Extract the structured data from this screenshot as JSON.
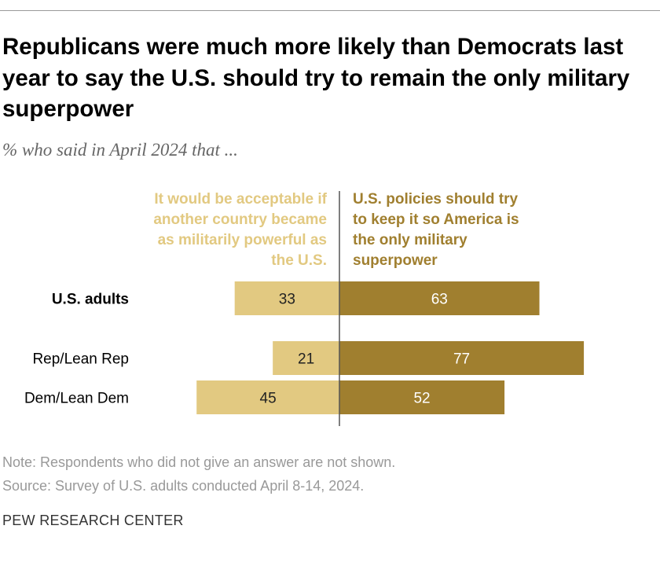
{
  "title": "Republicans were much more likely than Democrats last year to say the U.S. should try to remain the only military superpower",
  "subtitle": "% who said in April 2024 that ...",
  "note": "Note: Respondents who did not give an answer are not shown.",
  "source": "Source: Survey of U.S. adults conducted April 8-14, 2024.",
  "brand": "PEW RESEARCH CENTER",
  "chart_data": {
    "type": "bar",
    "orientation": "horizontal-diverging",
    "categories": [
      "U.S. adults",
      "Rep/Lean Rep",
      "Dem/Lean Dem"
    ],
    "series": [
      {
        "name": "It would be acceptable if another country became as militarily powerful as the U.S.",
        "values": [
          33,
          21,
          45
        ],
        "color": "#e2c981",
        "side": "left"
      },
      {
        "name": "U.S. policies should try to keep it so America is the only military superpower",
        "values": [
          63,
          77,
          52
        ],
        "color": "#a07f2f",
        "side": "right"
      }
    ],
    "bold_categories": [
      "U.S. adults"
    ]
  }
}
